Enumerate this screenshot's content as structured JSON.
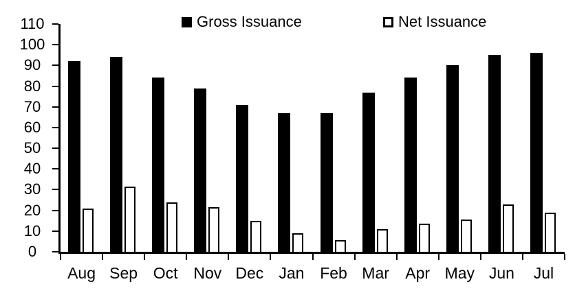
{
  "chart_data": {
    "type": "bar",
    "title": "",
    "xlabel": "",
    "ylabel": "",
    "categories": [
      "Aug",
      "Sep",
      "Oct",
      "Nov",
      "Dec",
      "Jan",
      "Feb",
      "Mar",
      "Apr",
      "May",
      "Jun",
      "Jul"
    ],
    "series": [
      {
        "name": "Gross Issuance",
        "style": "solid-black",
        "values": [
          92,
          94,
          84,
          79,
          71,
          67,
          67,
          77,
          84,
          90,
          95,
          96
        ]
      },
      {
        "name": "Net Issuance",
        "style": "white-outlined",
        "values": [
          21,
          31.5,
          24,
          21.5,
          15,
          9,
          5.5,
          11,
          13.5,
          15.5,
          23,
          19
        ]
      }
    ],
    "ylim": [
      0,
      110
    ],
    "yticks": [
      0,
      10,
      20,
      30,
      40,
      50,
      60,
      70,
      80,
      90,
      100,
      110
    ],
    "legend_position": "top",
    "grid": false
  },
  "colors": {
    "gross_bar": "#000000",
    "net_bar_fill": "#ffffff",
    "net_bar_border": "#000000",
    "axis": "#000000",
    "text": "#000000",
    "background": "#ffffff"
  }
}
